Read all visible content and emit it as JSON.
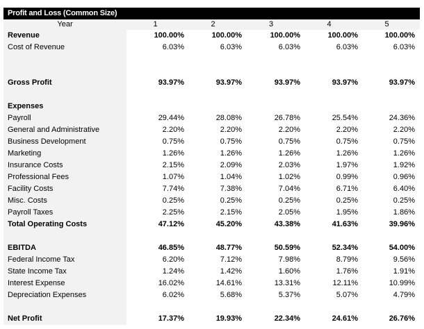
{
  "title": "Profit and Loss (Common Size)",
  "header": {
    "label": "Year",
    "years": [
      "1",
      "2",
      "3",
      "4",
      "5"
    ]
  },
  "rows": [
    {
      "label": "Revenue",
      "bold": true,
      "values": [
        "100.00%",
        "100.00%",
        "100.00%",
        "100.00%",
        "100.00%"
      ]
    },
    {
      "label": "Cost of Revenue",
      "values": [
        "6.03%",
        "6.03%",
        "6.03%",
        "6.03%",
        "6.03%"
      ]
    },
    {
      "label": "",
      "values": []
    },
    {
      "label": "",
      "values": []
    },
    {
      "label": "Gross Profit",
      "bold": true,
      "values": [
        "93.97%",
        "93.97%",
        "93.97%",
        "93.97%",
        "93.97%"
      ]
    },
    {
      "label": "",
      "values": []
    },
    {
      "label": "Expenses",
      "bold": true,
      "values": []
    },
    {
      "label": "Payroll",
      "values": [
        "29.44%",
        "28.08%",
        "26.78%",
        "25.54%",
        "24.36%"
      ]
    },
    {
      "label": "General and Administrative",
      "values": [
        "2.20%",
        "2.20%",
        "2.20%",
        "2.20%",
        "2.20%"
      ]
    },
    {
      "label": "Business Development",
      "values": [
        "0.75%",
        "0.75%",
        "0.75%",
        "0.75%",
        "0.75%"
      ]
    },
    {
      "label": "Marketing",
      "values": [
        "1.26%",
        "1.26%",
        "1.26%",
        "1.26%",
        "1.26%"
      ]
    },
    {
      "label": "Insurance Costs",
      "values": [
        "2.15%",
        "2.09%",
        "2.03%",
        "1.97%",
        "1.92%"
      ]
    },
    {
      "label": "Professional Fees",
      "values": [
        "1.07%",
        "1.04%",
        "1.02%",
        "0.99%",
        "0.96%"
      ]
    },
    {
      "label": "Facility Costs",
      "values": [
        "7.74%",
        "7.38%",
        "7.04%",
        "6.71%",
        "6.40%"
      ]
    },
    {
      "label": "Misc. Costs",
      "values": [
        "0.25%",
        "0.25%",
        "0.25%",
        "0.25%",
        "0.25%"
      ]
    },
    {
      "label": "Payroll Taxes",
      "values": [
        "2.25%",
        "2.15%",
        "2.05%",
        "1.95%",
        "1.86%"
      ]
    },
    {
      "label": "Total Operating Costs",
      "bold": true,
      "values": [
        "47.12%",
        "45.20%",
        "43.38%",
        "41.63%",
        "39.96%"
      ]
    },
    {
      "label": "",
      "values": []
    },
    {
      "label": "EBITDA",
      "bold": true,
      "values": [
        "46.85%",
        "48.77%",
        "50.59%",
        "52.34%",
        "54.00%"
      ]
    },
    {
      "label": "Federal Income Tax",
      "values": [
        "6.20%",
        "7.12%",
        "7.98%",
        "8.79%",
        "9.56%"
      ]
    },
    {
      "label": "State Income Tax",
      "values": [
        "1.24%",
        "1.42%",
        "1.60%",
        "1.76%",
        "1.91%"
      ]
    },
    {
      "label": "Interest Expense",
      "values": [
        "16.02%",
        "14.61%",
        "13.31%",
        "12.11%",
        "10.99%"
      ]
    },
    {
      "label": "Depreciation Expenses",
      "values": [
        "6.02%",
        "5.68%",
        "5.37%",
        "5.07%",
        "4.79%"
      ]
    },
    {
      "label": "",
      "values": []
    },
    {
      "label": "Net Profit",
      "bold": true,
      "values": [
        "17.37%",
        "19.93%",
        "22.34%",
        "24.61%",
        "26.76%"
      ]
    }
  ]
}
